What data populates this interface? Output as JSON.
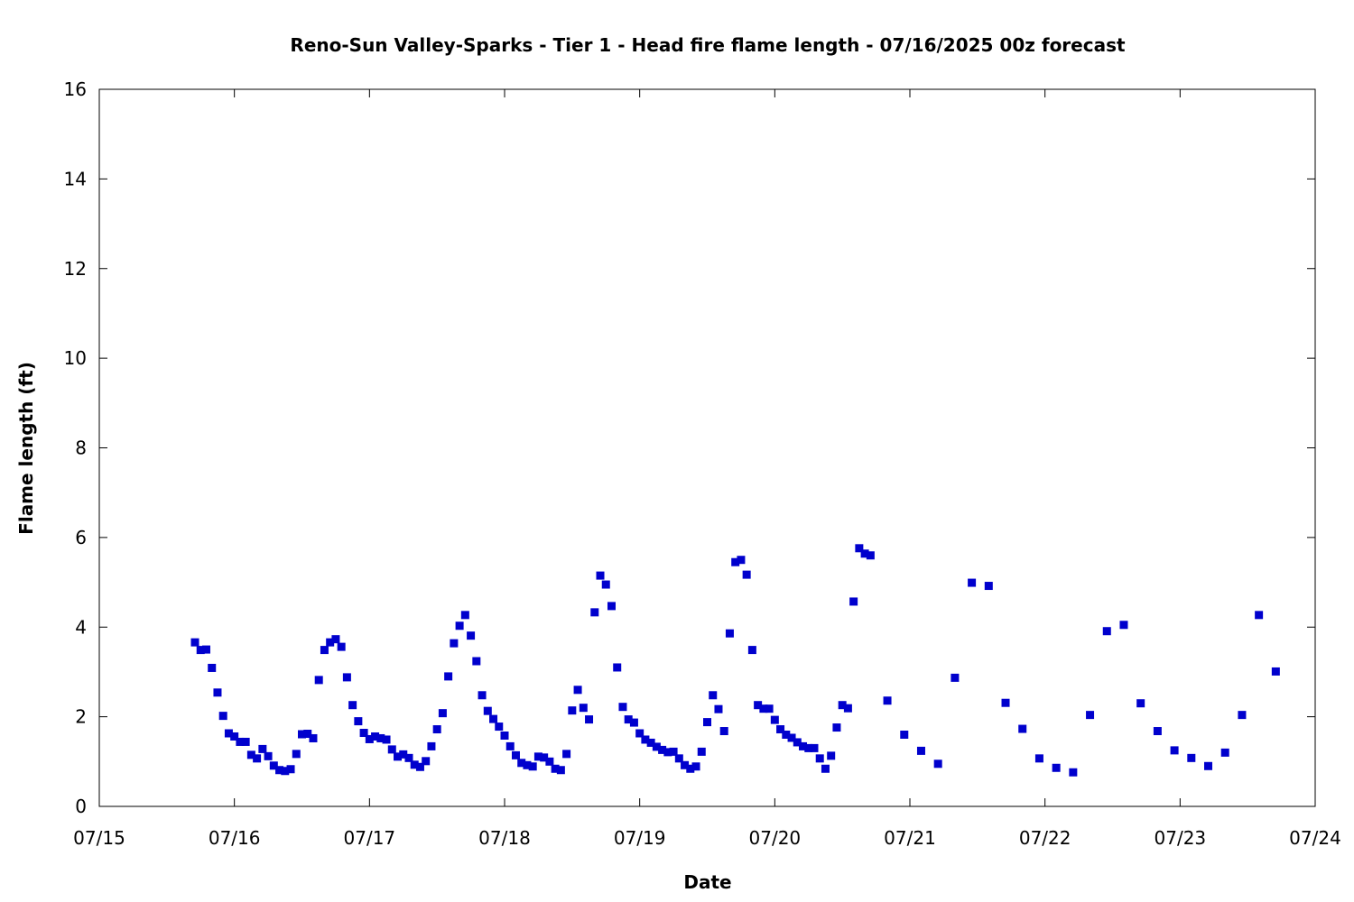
{
  "chart_data": {
    "type": "scatter",
    "title": "Reno-Sun Valley-Sparks - Tier 1 - Head fire flame length - 07/16/2025 00z forecast",
    "xlabel": "Date",
    "ylabel": "Flame length (ft)",
    "x_ticks": [
      "07/15",
      "07/16",
      "07/17",
      "07/18",
      "07/19",
      "07/20",
      "07/21",
      "07/22",
      "07/23",
      "07/24"
    ],
    "y_ticks": [
      "0",
      "2",
      "4",
      "6",
      "8",
      "10",
      "12",
      "14",
      "16"
    ],
    "xlim": [
      "07/15 00:00",
      "07/24 00:00"
    ],
    "ylim": [
      0,
      16
    ],
    "grid": false,
    "legend": "none",
    "marker_color": "#0000cd",
    "marker": "square",
    "series": [
      {
        "points": [
          [
            "07/15 17:00",
            3.66
          ],
          [
            "07/15 18:00",
            3.49
          ],
          [
            "07/15 19:00",
            3.5
          ],
          [
            "07/15 20:00",
            3.09
          ],
          [
            "07/15 21:00",
            2.54
          ],
          [
            "07/15 22:00",
            2.02
          ],
          [
            "07/15 23:00",
            1.63
          ],
          [
            "07/16 00:00",
            1.56
          ],
          [
            "07/16 01:00",
            1.44
          ],
          [
            "07/16 02:00",
            1.44
          ],
          [
            "07/16 03:00",
            1.15
          ],
          [
            "07/16 04:00",
            1.07
          ],
          [
            "07/16 05:00",
            1.28
          ],
          [
            "07/16 06:00",
            1.12
          ],
          [
            "07/16 07:00",
            0.91
          ],
          [
            "07/16 08:00",
            0.81
          ],
          [
            "07/16 09:00",
            0.79
          ],
          [
            "07/16 10:00",
            0.83
          ],
          [
            "07/16 11:00",
            1.17
          ],
          [
            "07/16 12:00",
            1.61
          ],
          [
            "07/16 13:00",
            1.62
          ],
          [
            "07/16 14:00",
            1.52
          ],
          [
            "07/16 15:00",
            2.82
          ],
          [
            "07/16 16:00",
            3.49
          ],
          [
            "07/16 17:00",
            3.66
          ],
          [
            "07/16 18:00",
            3.73
          ],
          [
            "07/16 19:00",
            3.56
          ],
          [
            "07/16 20:00",
            2.88
          ],
          [
            "07/16 21:00",
            2.26
          ],
          [
            "07/16 22:00",
            1.9
          ],
          [
            "07/16 23:00",
            1.64
          ],
          [
            "07/17 00:00",
            1.5
          ],
          [
            "07/17 01:00",
            1.56
          ],
          [
            "07/17 02:00",
            1.52
          ],
          [
            "07/17 03:00",
            1.49
          ],
          [
            "07/17 04:00",
            1.27
          ],
          [
            "07/17 05:00",
            1.11
          ],
          [
            "07/17 06:00",
            1.16
          ],
          [
            "07/17 07:00",
            1.08
          ],
          [
            "07/17 08:00",
            0.93
          ],
          [
            "07/17 09:00",
            0.88
          ],
          [
            "07/17 10:00",
            1.01
          ],
          [
            "07/17 11:00",
            1.34
          ],
          [
            "07/17 12:00",
            1.72
          ],
          [
            "07/17 13:00",
            2.08
          ],
          [
            "07/17 14:00",
            2.9
          ],
          [
            "07/17 15:00",
            3.64
          ],
          [
            "07/17 16:00",
            4.03
          ],
          [
            "07/17 17:00",
            4.27
          ],
          [
            "07/17 18:00",
            3.81
          ],
          [
            "07/17 19:00",
            3.24
          ],
          [
            "07/17 20:00",
            2.48
          ],
          [
            "07/17 21:00",
            2.13
          ],
          [
            "07/17 22:00",
            1.95
          ],
          [
            "07/17 23:00",
            1.78
          ],
          [
            "07/18 00:00",
            1.58
          ],
          [
            "07/18 01:00",
            1.34
          ],
          [
            "07/18 02:00",
            1.14
          ],
          [
            "07/18 03:00",
            0.97
          ],
          [
            "07/18 04:00",
            0.92
          ],
          [
            "07/18 05:00",
            0.89
          ],
          [
            "07/18 06:00",
            1.11
          ],
          [
            "07/18 07:00",
            1.09
          ],
          [
            "07/18 08:00",
            1.0
          ],
          [
            "07/18 09:00",
            0.84
          ],
          [
            "07/18 10:00",
            0.81
          ],
          [
            "07/18 11:00",
            1.17
          ],
          [
            "07/18 12:00",
            2.14
          ],
          [
            "07/18 13:00",
            2.6
          ],
          [
            "07/18 14:00",
            2.2
          ],
          [
            "07/18 15:00",
            1.94
          ],
          [
            "07/18 16:00",
            4.33
          ],
          [
            "07/18 17:00",
            5.15
          ],
          [
            "07/18 18:00",
            4.95
          ],
          [
            "07/18 19:00",
            4.47
          ],
          [
            "07/18 20:00",
            3.1
          ],
          [
            "07/18 21:00",
            2.22
          ],
          [
            "07/18 22:00",
            1.94
          ],
          [
            "07/18 23:00",
            1.87
          ],
          [
            "07/19 00:00",
            1.63
          ],
          [
            "07/19 01:00",
            1.49
          ],
          [
            "07/19 02:00",
            1.42
          ],
          [
            "07/19 03:00",
            1.33
          ],
          [
            "07/19 04:00",
            1.26
          ],
          [
            "07/19 05:00",
            1.21
          ],
          [
            "07/19 06:00",
            1.22
          ],
          [
            "07/19 07:00",
            1.07
          ],
          [
            "07/19 08:00",
            0.92
          ],
          [
            "07/19 09:00",
            0.84
          ],
          [
            "07/19 10:00",
            0.89
          ],
          [
            "07/19 11:00",
            1.22
          ],
          [
            "07/19 12:00",
            1.88
          ],
          [
            "07/19 13:00",
            2.48
          ],
          [
            "07/19 14:00",
            2.17
          ],
          [
            "07/19 15:00",
            1.68
          ],
          [
            "07/19 16:00",
            3.86
          ],
          [
            "07/19 17:00",
            5.45
          ],
          [
            "07/19 18:00",
            5.5
          ],
          [
            "07/19 19:00",
            5.17
          ],
          [
            "07/19 20:00",
            3.49
          ],
          [
            "07/19 21:00",
            2.26
          ],
          [
            "07/19 22:00",
            2.18
          ],
          [
            "07/19 23:00",
            2.18
          ],
          [
            "07/20 00:00",
            1.93
          ],
          [
            "07/20 01:00",
            1.72
          ],
          [
            "07/20 02:00",
            1.6
          ],
          [
            "07/20 03:00",
            1.53
          ],
          [
            "07/20 04:00",
            1.43
          ],
          [
            "07/20 05:00",
            1.34
          ],
          [
            "07/20 06:00",
            1.3
          ],
          [
            "07/20 07:00",
            1.3
          ],
          [
            "07/20 08:00",
            1.07
          ],
          [
            "07/20 09:00",
            0.84
          ],
          [
            "07/20 10:00",
            1.13
          ],
          [
            "07/20 11:00",
            1.76
          ],
          [
            "07/20 12:00",
            2.26
          ],
          [
            "07/20 13:00",
            2.19
          ],
          [
            "07/20 14:00",
            4.57
          ],
          [
            "07/20 15:00",
            5.76
          ],
          [
            "07/20 16:00",
            5.64
          ],
          [
            "07/20 17:00",
            5.6
          ],
          [
            "07/20 20:00",
            2.36
          ],
          [
            "07/20 23:00",
            1.6
          ],
          [
            "07/21 02:00",
            1.24
          ],
          [
            "07/21 05:00",
            0.95
          ],
          [
            "07/21 08:00",
            2.87
          ],
          [
            "07/21 11:00",
            4.99
          ],
          [
            "07/21 14:00",
            4.92
          ],
          [
            "07/21 17:00",
            2.31
          ],
          [
            "07/21 20:00",
            1.73
          ],
          [
            "07/21 23:00",
            1.07
          ],
          [
            "07/22 02:00",
            0.86
          ],
          [
            "07/22 05:00",
            0.76
          ],
          [
            "07/22 08:00",
            2.04
          ],
          [
            "07/22 11:00",
            3.91
          ],
          [
            "07/22 14:00",
            4.05
          ],
          [
            "07/22 17:00",
            2.3
          ],
          [
            "07/22 20:00",
            1.68
          ],
          [
            "07/22 23:00",
            1.25
          ],
          [
            "07/23 02:00",
            1.08
          ],
          [
            "07/23 05:00",
            0.9
          ],
          [
            "07/23 08:00",
            1.2
          ],
          [
            "07/23 11:00",
            2.04
          ],
          [
            "07/23 14:00",
            4.27
          ],
          [
            "07/23 17:00",
            3.01
          ]
        ]
      }
    ]
  }
}
